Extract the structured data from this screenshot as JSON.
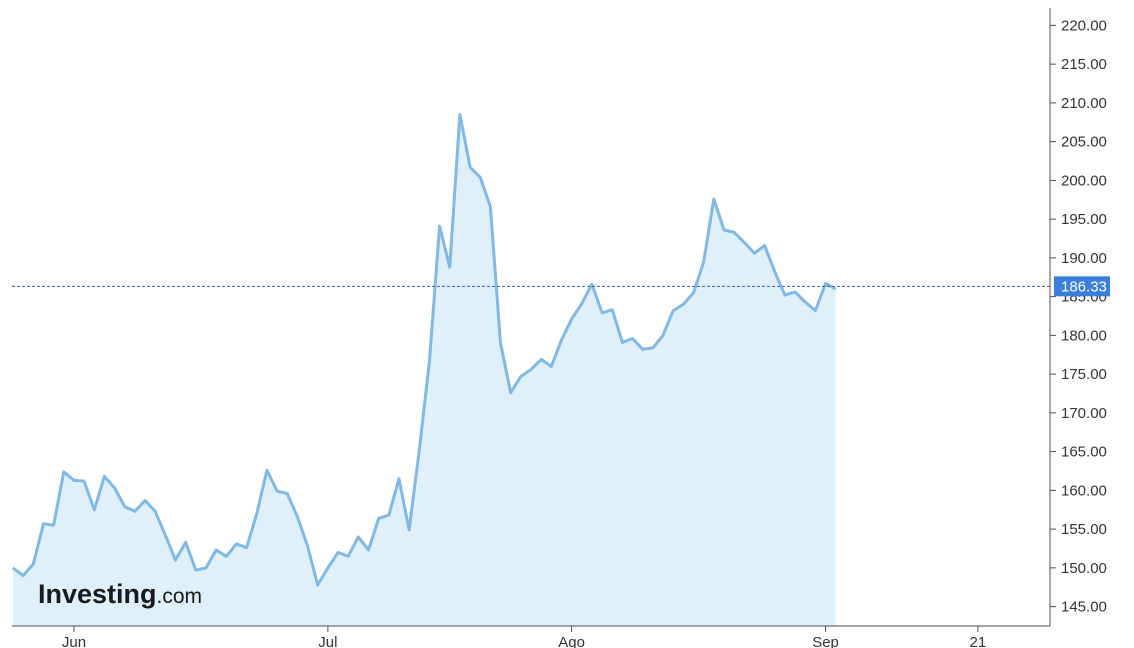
{
  "watermark": {
    "brand": "Investing",
    "suffix": ".com"
  },
  "colors": {
    "line": "#80b8e6",
    "fill": "#dff0fa",
    "axis": "#4d4d4d",
    "current_price_tag": "#3a7fdc",
    "current_price_line": "#3a5fa8"
  },
  "chart_data": {
    "type": "area",
    "title": "",
    "xlabel": "",
    "ylabel": "",
    "ylim": [
      142.5,
      222.5
    ],
    "y_ticks": [
      "145.00",
      "150.00",
      "155.00",
      "160.00",
      "165.00",
      "170.00",
      "175.00",
      "180.00",
      "185.00",
      "190.00",
      "195.00",
      "200.00",
      "205.00",
      "210.00",
      "215.00",
      "220.00"
    ],
    "x_ticks": [
      {
        "label": "Jun",
        "index": 6
      },
      {
        "label": "Jul",
        "index": 31
      },
      {
        "label": "Ago",
        "index": 55
      },
      {
        "label": "Sep",
        "index": 80
      },
      {
        "label": "21",
        "index": 95
      }
    ],
    "x_range_index": [
      -0.1,
      102.1
    ],
    "current_value": 186.33,
    "current_value_label": "186.33",
    "series": [
      {
        "values": [
          150.0,
          149.0,
          150.5,
          155.7,
          155.5,
          162.4,
          161.3,
          161.2,
          157.5,
          161.8,
          160.3,
          157.9,
          157.3,
          158.7,
          157.3,
          154.2,
          151.0,
          153.3,
          149.7,
          150.0,
          152.3,
          151.5,
          153.1,
          152.6,
          157.0,
          162.6,
          159.9,
          159.6,
          156.6,
          152.8,
          147.8,
          150.0,
          152.0,
          151.5,
          154.0,
          152.3,
          156.4,
          156.8,
          161.5,
          154.9,
          165.2,
          176.6,
          194.1,
          188.8,
          208.5,
          201.7,
          200.4,
          196.6,
          179.0,
          172.6,
          174.7,
          175.6,
          176.9,
          176.0,
          179.4,
          182.1,
          184.1,
          186.6,
          182.9,
          183.3,
          179.1,
          179.6,
          178.2,
          178.4,
          180.0,
          183.2,
          184.0,
          185.5,
          189.5,
          197.6,
          193.6,
          193.3,
          192.0,
          190.6,
          191.6,
          188.2,
          185.2,
          185.6,
          184.3,
          183.2,
          186.7,
          186.0
        ]
      }
    ]
  }
}
